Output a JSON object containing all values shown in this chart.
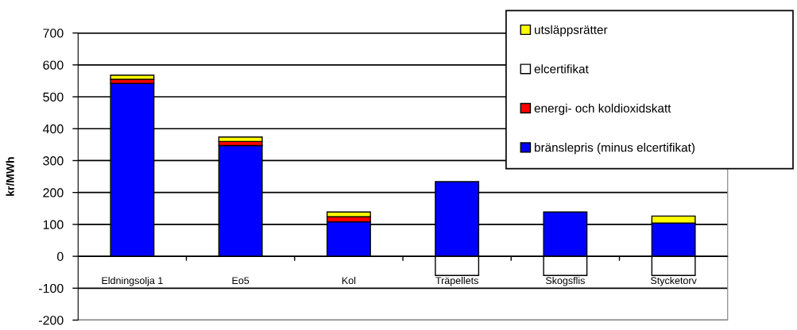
{
  "chart_data": {
    "type": "bar",
    "stacked": true,
    "ylabel": "kr/MWh",
    "categories": [
      "Eldningsolja 1",
      "Eo5",
      "Kol",
      "Träpellets",
      "Skogsflis",
      "Stycketorv"
    ],
    "series": [
      {
        "name": "bränslepris (minus elcertifikat)",
        "color": "#0000ff",
        "values": [
          542,
          347,
          108,
          234,
          139,
          104
        ]
      },
      {
        "name": "energi- och koldioxidskatt",
        "color": "#ff0000",
        "values": [
          13,
          13,
          16,
          null,
          null,
          null
        ]
      },
      {
        "name": "elcertifikat",
        "color": "#ffffff",
        "values": [
          null,
          null,
          null,
          -60,
          -60,
          -60
        ]
      },
      {
        "name": "utsläppsrätter",
        "color": "#ffff00",
        "values": [
          13,
          14,
          15,
          null,
          null,
          22
        ]
      }
    ],
    "ylim": [
      -200,
      700
    ],
    "yticks": [
      -200,
      -100,
      0,
      100,
      200,
      300,
      400,
      500,
      600,
      700
    ],
    "grid": "y",
    "legend": "top right"
  }
}
